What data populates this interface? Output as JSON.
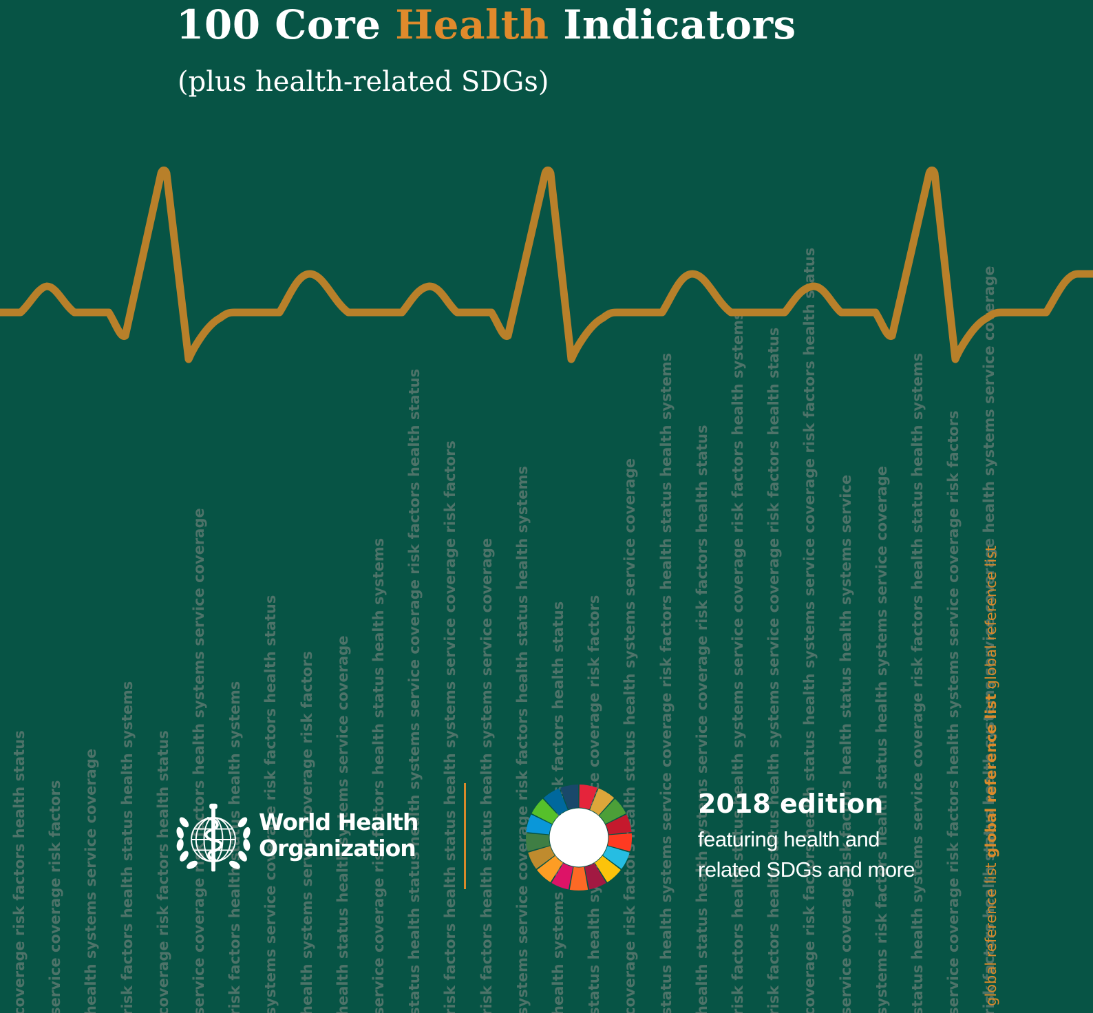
{
  "cover": {
    "title_part1": "100 Core ",
    "title_accent": "Health",
    "title_part2": " Indicators",
    "subtitle": "(plus health-related SDGs)"
  },
  "colors": {
    "background": "#075445",
    "accent": "#e08a2c",
    "ecg_line": "#b8802a",
    "background_text": "#4e7369"
  },
  "background_columns": [
    "coverage risk factors health status",
    "service coverage risk factors",
    "health systems service coverage",
    "risk factors health status health systems",
    "coverage risk factors health status",
    "service coverage risk factors health systems service coverage",
    "risk factors health status health systems",
    "systems service coverage risk factors health status",
    "health systems service coverage risk factors",
    "health status health systems service coverage",
    "service coverage risk factors health status health systems",
    "status health status health systems service coverage risk factors health status",
    "risk factors health status health systems service coverage risk factors",
    "risk factors health status health systems service coverage",
    "systems service coverage risk factors health status health systems",
    "health systems coverage risk factors health status",
    "status health systems service coverage risk factors",
    "coverage risk factors health status health systems service coverage",
    "status health systems service coverage risk factors health status health systems",
    "health status health systems service coverage risk factors health status",
    "risk factors health status health systems service coverage risk factors health systems",
    "risk factors health status health systems service coverage risk factors health status",
    "coverage risk factors health status health systems service coverage risk factors health status",
    "service coverage risk factors health status health systems service",
    "systems risk factors health status health systems service coverage",
    "status health systems service coverage risk factors health status health systems",
    "service coverage risk factors health systems service coverage risk factors",
    "risk factors health status health systems service coverage health systems service coverage"
  ],
  "who": {
    "logo_icon": "who-emblem-icon",
    "name_line1": "World Health",
    "name_line2": "Organization"
  },
  "sdg": {
    "icon": "sdg-wheel-icon",
    "colors": [
      "#e5243b",
      "#dda63a",
      "#4c9f38",
      "#c5192d",
      "#ff3a21",
      "#26bde2",
      "#fcc30b",
      "#a21942",
      "#fd6925",
      "#dd1367",
      "#fd9d24",
      "#bf8b2e",
      "#3f7e44",
      "#0a97d9",
      "#56c02b",
      "#00689d",
      "#19486a"
    ]
  },
  "edition": {
    "year_label": "2018 edition",
    "line1": "featuring health and",
    "line2": "related SDGs and more"
  },
  "reference_list": {
    "part1": "global reference list ",
    "bold": "global reference list",
    "part2": " global reference list"
  }
}
